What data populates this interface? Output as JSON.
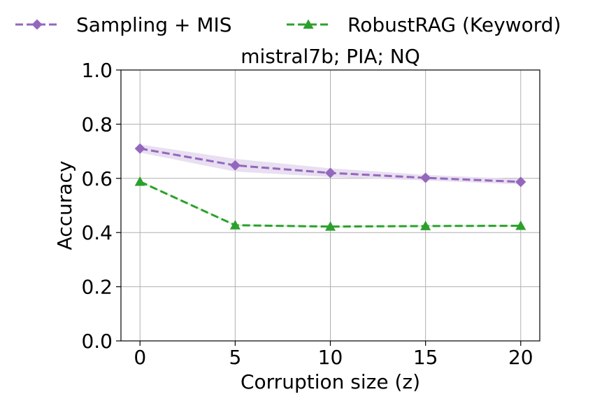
{
  "chart_data": {
    "type": "line",
    "title": "mistral7b; PIA; NQ",
    "xlabel": "Corruption size (z)",
    "ylabel": "Accuracy",
    "x": [
      0,
      5,
      10,
      15,
      20
    ],
    "xlim": [
      -1,
      21
    ],
    "ylim": [
      0.0,
      1.0
    ],
    "xticks": [
      0,
      5,
      10,
      15,
      20
    ],
    "yticks": [
      0.0,
      0.2,
      0.4,
      0.6,
      0.8,
      1.0
    ],
    "xtick_labels": [
      "0",
      "5",
      "10",
      "15",
      "20"
    ],
    "ytick_labels": [
      "0.0",
      "0.2",
      "0.4",
      "0.6",
      "0.8",
      "1.0"
    ],
    "grid": true,
    "legend_position": "top",
    "series": [
      {
        "name": "Sampling + MIS",
        "values": [
          0.71,
          0.648,
          0.62,
          0.602,
          0.587
        ],
        "band_low": [
          0.695,
          0.625,
          0.605,
          0.592,
          0.578
        ],
        "band_high": [
          0.725,
          0.672,
          0.637,
          0.613,
          0.597
        ],
        "color": "#9467bd",
        "band_color": "#e6dcf0",
        "marker": "diamond",
        "linestyle": "dashed"
      },
      {
        "name": "RobustRAG (Keyword)",
        "values": [
          0.588,
          0.427,
          0.422,
          0.424,
          0.425
        ],
        "band_low": [
          0.585,
          0.424,
          0.419,
          0.421,
          0.422
        ],
        "band_high": [
          0.591,
          0.43,
          0.425,
          0.427,
          0.428
        ],
        "color": "#2ca02c",
        "band_color": "#d5ecd5",
        "marker": "triangle",
        "linestyle": "dashed"
      }
    ]
  }
}
